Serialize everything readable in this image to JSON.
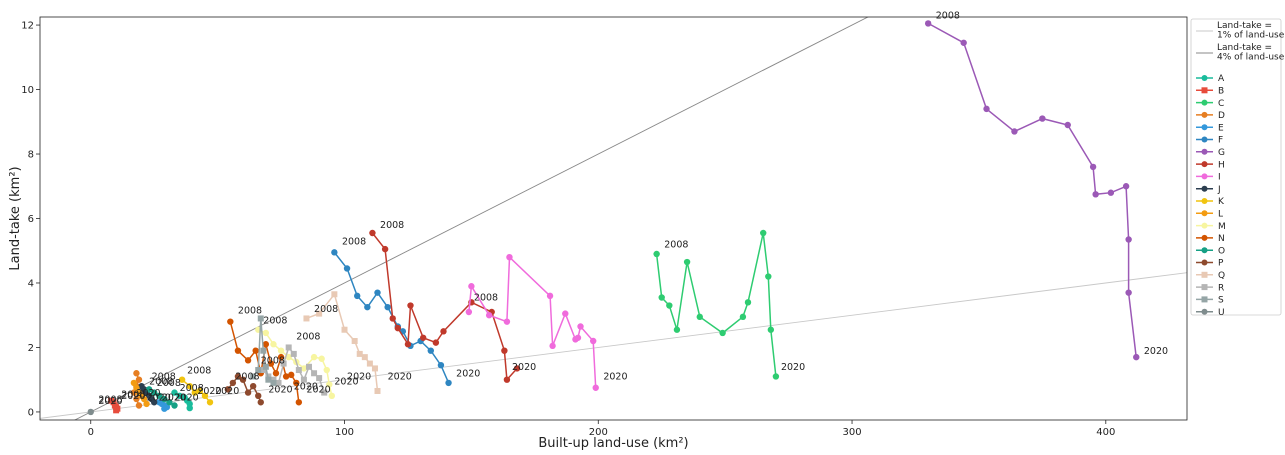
{
  "chart_data": {
    "type": "line",
    "xlabel": "Built-up land-use (km²)",
    "ylabel": "Land-take (km²)",
    "xlim": [
      -20,
      432
    ],
    "ylim": [
      -0.25,
      12.25
    ],
    "xticks": [
      0,
      100,
      200,
      300,
      400
    ],
    "yticks": [
      0,
      2,
      4,
      6,
      8,
      10,
      12
    ],
    "legend_position": "right",
    "reference_lines": [
      {
        "name": "Land-take =\n1% of land-use",
        "slope": 0.01,
        "color": "#c8c8c8"
      },
      {
        "name": "Land-take =\n4% of land-use",
        "slope": 0.04,
        "color": "#888888"
      }
    ],
    "series": [
      {
        "name": "A",
        "color": "#1abc9c",
        "marker": "o",
        "x": [
          33,
          35,
          37,
          38,
          39,
          39
        ],
        "y": [
          0.6,
          0.5,
          0.45,
          0.35,
          0.25,
          0.12
        ]
      },
      {
        "name": "B",
        "color": "#e74c3c",
        "marker": "s",
        "x": [
          8,
          9,
          9.5,
          10,
          10.5,
          10
        ],
        "y": [
          0.35,
          0.3,
          0.2,
          0.15,
          0.1,
          0.05
        ]
      },
      {
        "name": "C",
        "color": "#2ecc71",
        "marker": "o",
        "x": [
          223,
          225,
          228,
          231,
          235,
          240,
          249,
          257,
          259,
          265,
          267,
          268,
          270
        ],
        "y": [
          4.9,
          3.55,
          3.3,
          2.55,
          4.65,
          2.95,
          2.45,
          2.95,
          3.4,
          5.55,
          4.2,
          2.55,
          1.1
        ]
      },
      {
        "name": "D",
        "color": "#e67e22",
        "marker": "o",
        "x": [
          18,
          19,
          18,
          17,
          18,
          19
        ],
        "y": [
          1.2,
          1.0,
          0.8,
          0.6,
          0.4,
          0.2
        ]
      },
      {
        "name": "E",
        "color": "#3498db",
        "marker": "o",
        "x": [
          27,
          28,
          29,
          30,
          29
        ],
        "y": [
          0.3,
          0.25,
          0.2,
          0.15,
          0.1
        ]
      },
      {
        "name": "F",
        "color": "#2e86c1",
        "marker": "o",
        "x": [
          96,
          101,
          105,
          109,
          113,
          117,
          121,
          123,
          126,
          130,
          134,
          138,
          141
        ],
        "y": [
          4.95,
          4.45,
          3.6,
          3.25,
          3.7,
          3.25,
          2.65,
          2.5,
          2.05,
          2.2,
          1.9,
          1.45,
          0.9
        ]
      },
      {
        "name": "G",
        "color": "#9b59b6",
        "marker": "o",
        "x": [
          330,
          344,
          353,
          364,
          375,
          385,
          395,
          396,
          402,
          408,
          409,
          409,
          412
        ],
        "y": [
          12.05,
          11.45,
          9.4,
          8.7,
          9.1,
          8.9,
          7.6,
          6.75,
          6.8,
          7.0,
          5.35,
          3.7,
          1.7
        ]
      },
      {
        "name": "H",
        "color": "#c0392b",
        "marker": "o",
        "x": [
          111,
          116,
          119,
          121,
          125,
          126,
          131,
          136,
          139,
          150,
          158,
          163,
          164,
          168
        ],
        "y": [
          5.55,
          5.05,
          2.9,
          2.6,
          2.1,
          3.3,
          2.3,
          2.15,
          2.5,
          3.4,
          3.1,
          1.9,
          1.0,
          1.35
        ]
      },
      {
        "name": "I",
        "color": "#f06bdc",
        "marker": "o",
        "x": [
          149,
          150,
          157,
          164,
          165,
          181,
          182,
          187,
          191,
          192,
          193,
          198,
          199
        ],
        "y": [
          3.1,
          3.9,
          3.0,
          2.8,
          4.8,
          3.6,
          2.05,
          3.05,
          2.25,
          2.3,
          2.65,
          2.2,
          0.75
        ]
      },
      {
        "name": "J",
        "color": "#2c3e50",
        "marker": "o",
        "x": [
          20,
          21,
          22,
          23,
          24,
          25
        ],
        "y": [
          0.8,
          0.7,
          0.6,
          0.5,
          0.4,
          0.3
        ]
      },
      {
        "name": "K",
        "color": "#f1c40f",
        "marker": "o",
        "x": [
          36,
          39,
          41,
          43,
          45,
          47
        ],
        "y": [
          1.0,
          0.8,
          0.6,
          0.65,
          0.5,
          0.3
        ]
      },
      {
        "name": "L",
        "color": "#f39c12",
        "marker": "o",
        "x": [
          17,
          18,
          19,
          20,
          21,
          22
        ],
        "y": [
          0.9,
          0.75,
          0.6,
          0.5,
          0.4,
          0.25
        ]
      },
      {
        "name": "M",
        "color": "#f7f5a0",
        "marker": "o",
        "x": [
          66,
          69,
          72,
          75,
          78,
          81,
          84,
          88,
          91,
          93,
          94,
          95
        ],
        "y": [
          2.55,
          2.45,
          2.1,
          1.9,
          1.7,
          1.55,
          1.35,
          1.7,
          1.65,
          1.3,
          0.85,
          0.5
        ]
      },
      {
        "name": "N",
        "color": "#d35400",
        "marker": "o",
        "x": [
          55,
          58,
          62,
          65,
          67,
          69,
          71,
          73,
          75,
          77,
          79,
          81,
          82
        ],
        "y": [
          2.8,
          1.9,
          1.6,
          1.9,
          1.2,
          2.1,
          1.5,
          1.2,
          1.7,
          1.1,
          1.15,
          0.9,
          0.3
        ]
      },
      {
        "name": "O",
        "color": "#16a085",
        "marker": "o",
        "x": [
          23,
          25,
          27,
          29,
          31,
          33
        ],
        "y": [
          0.7,
          0.6,
          0.5,
          0.4,
          0.3,
          0.2
        ]
      },
      {
        "name": "P",
        "color": "#8e4a2e",
        "marker": "o",
        "x": [
          54,
          56,
          58,
          60,
          62,
          64,
          66,
          67
        ],
        "y": [
          0.7,
          0.9,
          1.1,
          1.0,
          0.6,
          0.8,
          0.5,
          0.3
        ]
      },
      {
        "name": "Q",
        "color": "#e8c9b4",
        "marker": "s",
        "x": [
          85,
          90,
          96,
          100,
          104,
          106,
          108,
          110,
          112,
          113
        ],
        "y": [
          2.9,
          3.05,
          3.65,
          2.55,
          2.2,
          1.8,
          1.7,
          1.5,
          1.35,
          0.65
        ]
      },
      {
        "name": "R",
        "color": "#b5b5b5",
        "marker": "s",
        "x": [
          68,
          70,
          72,
          74,
          76,
          78,
          80,
          82,
          84,
          86,
          88,
          90,
          92
        ],
        "y": [
          1.3,
          1.1,
          1.0,
          0.9,
          1.5,
          2.0,
          1.8,
          1.3,
          1.0,
          1.4,
          1.2,
          1.05,
          0.6
        ]
      },
      {
        "name": "S",
        "color": "#95a5a6",
        "marker": "s",
        "x": [
          64,
          66,
          67,
          68,
          69,
          70,
          72
        ],
        "y": [
          1.1,
          1.3,
          2.9,
          1.9,
          1.4,
          1.0,
          0.9
        ]
      },
      {
        "name": "U",
        "color": "#7f8c8d",
        "marker": "o",
        "x": [
          0
        ],
        "y": [
          0.0
        ]
      }
    ],
    "annotations": [
      {
        "text": "2008",
        "x": 333,
        "y": 12.2
      },
      {
        "text": "2020",
        "x": 415,
        "y": 1.8
      },
      {
        "text": "2008",
        "x": 114,
        "y": 5.7
      },
      {
        "text": "2008",
        "x": 99,
        "y": 5.2
      },
      {
        "text": "2008",
        "x": 226,
        "y": 5.1
      },
      {
        "text": "2020",
        "x": 272,
        "y": 1.3
      },
      {
        "text": "2008",
        "x": 151,
        "y": 3.45
      },
      {
        "text": "2020",
        "x": 144,
        "y": 1.1
      },
      {
        "text": "2020",
        "x": 166,
        "y": 1.3
      },
      {
        "text": "2020",
        "x": 202,
        "y": 1.0
      },
      {
        "text": "2008",
        "x": 58,
        "y": 3.05
      },
      {
        "text": "2008",
        "x": 68,
        "y": 2.75
      },
      {
        "text": "2008",
        "x": 88,
        "y": 3.1
      },
      {
        "text": "2008",
        "x": 81,
        "y": 2.25
      },
      {
        "text": "2008",
        "x": 67,
        "y": 1.5
      },
      {
        "text": "2008",
        "x": 57,
        "y": 1.0
      },
      {
        "text": "2008",
        "x": 38,
        "y": 1.2
      },
      {
        "text": "2008",
        "x": 35,
        "y": 0.65
      },
      {
        "text": "2008",
        "x": 24,
        "y": 1.0
      },
      {
        "text": "2008",
        "x": 23,
        "y": 0.85
      },
      {
        "text": "2008",
        "x": 26,
        "y": 0.8
      },
      {
        "text": "2008",
        "x": 12,
        "y": 0.45
      },
      {
        "text": "2008",
        "x": 3,
        "y": 0.3
      },
      {
        "text": "2020",
        "x": 3,
        "y": 0.25
      },
      {
        "text": "2020",
        "x": 12,
        "y": 0.4
      },
      {
        "text": "2020",
        "x": 18,
        "y": 0.5
      },
      {
        "text": "2020",
        "x": 22,
        "y": 0.35
      },
      {
        "text": "2020",
        "x": 28,
        "y": 0.35
      },
      {
        "text": "2020",
        "x": 33,
        "y": 0.35
      },
      {
        "text": "2020",
        "x": 42,
        "y": 0.55
      },
      {
        "text": "2020",
        "x": 49,
        "y": 0.55
      },
      {
        "text": "2020",
        "x": 70,
        "y": 0.6
      },
      {
        "text": "2020",
        "x": 80,
        "y": 0.7
      },
      {
        "text": "2020",
        "x": 85,
        "y": 0.6
      },
      {
        "text": "2020",
        "x": 96,
        "y": 0.85
      },
      {
        "text": "2020",
        "x": 101,
        "y": 1.0
      },
      {
        "text": "2020",
        "x": 117,
        "y": 1.0
      }
    ]
  }
}
